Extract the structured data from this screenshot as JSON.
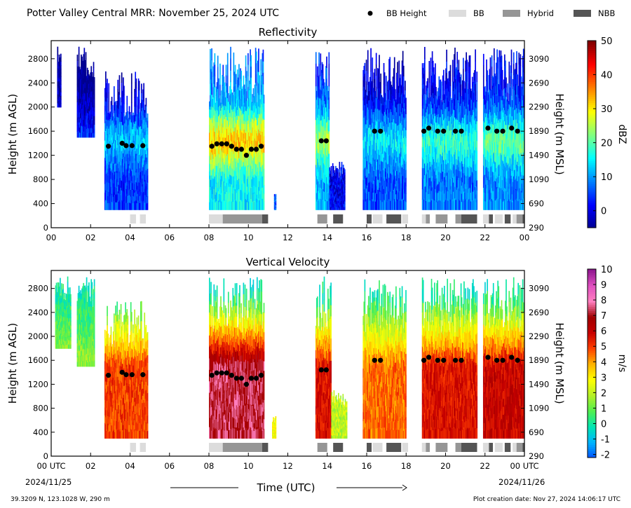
{
  "header": {
    "title": "Potter Valley Central MRR:  November 25, 2024 UTC",
    "legend": [
      {
        "label": "BB Height",
        "kind": "dot",
        "color": "#000000"
      },
      {
        "label": "BB",
        "kind": "rect",
        "color": "#dcdcdc"
      },
      {
        "label": "Hybrid",
        "kind": "rect",
        "color": "#969696"
      },
      {
        "label": "NBB",
        "kind": "rect",
        "color": "#555555"
      }
    ]
  },
  "footer": {
    "location": "39.3209 N, 123.1028 W, 290 m",
    "creation": "Plot creation date: Nov 27, 2024 14:06:17 UTC",
    "xlabel": "Time (UTC)",
    "date_start": "2024/11/25",
    "date_end": "2024/11/26"
  },
  "chart_data": [
    {
      "type": "heatmap",
      "title": "Reflectivity",
      "ylabel": "Height (m AGL)",
      "ylabel_right": "Height (m MSL)",
      "xlim": [
        0,
        24
      ],
      "ylim": [
        0,
        3100
      ],
      "x_ticks": [
        "00",
        "02",
        "04",
        "06",
        "08",
        "10",
        "12",
        "14",
        "16",
        "18",
        "20",
        "22",
        "00"
      ],
      "y_ticks": [
        0,
        400,
        800,
        1200,
        1600,
        2000,
        2400,
        2800
      ],
      "y_ticks_right": [
        290,
        690,
        1090,
        1490,
        1890,
        2290,
        2690,
        3090
      ],
      "colorbar": {
        "label": "dBZ",
        "min": -5,
        "max": 50,
        "ticks": [
          50,
          40,
          30,
          20,
          10,
          0
        ]
      },
      "colormap": [
        "#00008f",
        "#0000ff",
        "#0080ff",
        "#00ffff",
        "#80ff80",
        "#ffff00",
        "#ff8000",
        "#ff0000",
        "#800000"
      ],
      "precip_segments": [
        {
          "start": 0.3,
          "end": 0.5,
          "top": 3000,
          "bottom": 2000,
          "intensity": 0.3
        },
        {
          "start": 1.3,
          "end": 2.2,
          "top": 3000,
          "bottom": 1500,
          "intensity": 0.25
        },
        {
          "start": 2.7,
          "end": 4.9,
          "top": 2600,
          "bottom": 300,
          "intensity": 0.38
        },
        {
          "start": 8.0,
          "end": 10.8,
          "top": 3000,
          "bottom": 300,
          "intensity": 0.72
        },
        {
          "start": 11.3,
          "end": 11.4,
          "top": 600,
          "bottom": 300,
          "intensity": 0.4
        },
        {
          "start": 13.4,
          "end": 14.1,
          "top": 3000,
          "bottom": 300,
          "intensity": 0.6
        },
        {
          "start": 14.1,
          "end": 14.9,
          "top": 1100,
          "bottom": 300,
          "intensity": 0.25
        },
        {
          "start": 15.8,
          "end": 18.0,
          "top": 3000,
          "bottom": 300,
          "intensity": 0.42
        },
        {
          "start": 18.8,
          "end": 21.6,
          "top": 3000,
          "bottom": 300,
          "intensity": 0.48
        },
        {
          "start": 21.9,
          "end": 24.0,
          "top": 3000,
          "bottom": 300,
          "intensity": 0.52
        }
      ],
      "bb_points": [
        {
          "t": 2.9,
          "h": 1350
        },
        {
          "t": 3.6,
          "h": 1400
        },
        {
          "t": 3.8,
          "h": 1360
        },
        {
          "t": 4.1,
          "h": 1360
        },
        {
          "t": 4.65,
          "h": 1360
        },
        {
          "t": 8.15,
          "h": 1350
        },
        {
          "t": 8.4,
          "h": 1390
        },
        {
          "t": 8.65,
          "h": 1390
        },
        {
          "t": 8.9,
          "h": 1390
        },
        {
          "t": 9.15,
          "h": 1350
        },
        {
          "t": 9.4,
          "h": 1300
        },
        {
          "t": 9.65,
          "h": 1300
        },
        {
          "t": 9.9,
          "h": 1200
        },
        {
          "t": 10.15,
          "h": 1300
        },
        {
          "t": 10.4,
          "h": 1300
        },
        {
          "t": 10.65,
          "h": 1350
        },
        {
          "t": 13.7,
          "h": 1440
        },
        {
          "t": 13.95,
          "h": 1440
        },
        {
          "t": 16.4,
          "h": 1600
        },
        {
          "t": 16.7,
          "h": 1600
        },
        {
          "t": 18.9,
          "h": 1600
        },
        {
          "t": 19.15,
          "h": 1650
        },
        {
          "t": 19.6,
          "h": 1600
        },
        {
          "t": 19.9,
          "h": 1600
        },
        {
          "t": 20.5,
          "h": 1600
        },
        {
          "t": 20.8,
          "h": 1600
        },
        {
          "t": 22.15,
          "h": 1650
        },
        {
          "t": 22.6,
          "h": 1600
        },
        {
          "t": 22.9,
          "h": 1600
        },
        {
          "t": 23.35,
          "h": 1650
        },
        {
          "t": 23.65,
          "h": 1600
        }
      ],
      "bb_type_bar": [
        {
          "start": 4.0,
          "end": 4.3,
          "type": "BB"
        },
        {
          "start": 4.5,
          "end": 4.8,
          "type": "BB"
        },
        {
          "start": 8.0,
          "end": 8.7,
          "type": "BB"
        },
        {
          "start": 8.7,
          "end": 10.7,
          "type": "Hybrid"
        },
        {
          "start": 10.7,
          "end": 11.0,
          "type": "NBB"
        },
        {
          "start": 13.5,
          "end": 14.0,
          "type": "Hybrid"
        },
        {
          "start": 14.3,
          "end": 14.8,
          "type": "NBB"
        },
        {
          "start": 16.0,
          "end": 16.25,
          "type": "NBB"
        },
        {
          "start": 16.3,
          "end": 16.8,
          "type": "BB"
        },
        {
          "start": 17.0,
          "end": 17.75,
          "type": "NBB"
        },
        {
          "start": 17.8,
          "end": 18.1,
          "type": "BB"
        },
        {
          "start": 18.8,
          "end": 19.0,
          "type": "BB"
        },
        {
          "start": 19.0,
          "end": 19.2,
          "type": "Hybrid"
        },
        {
          "start": 19.5,
          "end": 20.1,
          "type": "Hybrid"
        },
        {
          "start": 20.5,
          "end": 20.8,
          "type": "Hybrid"
        },
        {
          "start": 20.8,
          "end": 21.6,
          "type": "NBB"
        },
        {
          "start": 21.9,
          "end": 22.2,
          "type": "BB"
        },
        {
          "start": 22.2,
          "end": 22.4,
          "type": "NBB"
        },
        {
          "start": 22.5,
          "end": 22.9,
          "type": "BB"
        },
        {
          "start": 23.0,
          "end": 23.3,
          "type": "NBB"
        },
        {
          "start": 23.4,
          "end": 23.6,
          "type": "BB"
        },
        {
          "start": 23.6,
          "end": 23.9,
          "type": "Hybrid"
        },
        {
          "start": 23.9,
          "end": 24.0,
          "type": "NBB"
        }
      ]
    },
    {
      "type": "heatmap",
      "title": "Vertical Velocity",
      "ylabel": "Height (m AGL)",
      "ylabel_right": "Height (m MSL)",
      "xlim": [
        0,
        24
      ],
      "ylim": [
        0,
        3100
      ],
      "x_ticks": [
        "00 UTC",
        "02",
        "04",
        "06",
        "08",
        "10",
        "12",
        "14",
        "16",
        "18",
        "20",
        "22",
        "00 UTC"
      ],
      "y_ticks": [
        0,
        400,
        800,
        1200,
        1600,
        2000,
        2400,
        2800
      ],
      "y_ticks_right": [
        290,
        690,
        1090,
        1490,
        1890,
        2290,
        2690,
        3090
      ],
      "colorbar": {
        "label": "m/s",
        "min": -2.2,
        "max": 10,
        "ticks": [
          10,
          9,
          8,
          7,
          6,
          5,
          4,
          3,
          2,
          1,
          0,
          -1,
          -2
        ]
      },
      "colormap": [
        "#0050ff",
        "#00b4ff",
        "#00e6b4",
        "#50f050",
        "#b4f028",
        "#ffff00",
        "#ffb400",
        "#ff4000",
        "#c80000",
        "#a00000",
        "#ff80c0",
        "#e050c0",
        "#901890"
      ],
      "precip_segments": [
        {
          "start": 0.2,
          "end": 1.0,
          "top": 3000,
          "bottom": 1800,
          "intensity": 0.2
        },
        {
          "start": 1.3,
          "end": 2.2,
          "top": 3000,
          "bottom": 1500,
          "intensity": 0.18
        },
        {
          "start": 2.7,
          "end": 4.9,
          "top": 2600,
          "bottom": 300,
          "intensity": 0.55
        },
        {
          "start": 8.0,
          "end": 10.8,
          "top": 3000,
          "bottom": 300,
          "intensity": 0.8
        },
        {
          "start": 11.2,
          "end": 11.4,
          "top": 700,
          "bottom": 300,
          "intensity": 0.3
        },
        {
          "start": 13.4,
          "end": 14.2,
          "top": 3000,
          "bottom": 300,
          "intensity": 0.62
        },
        {
          "start": 14.2,
          "end": 15.0,
          "top": 1100,
          "bottom": 300,
          "intensity": 0.22
        },
        {
          "start": 15.8,
          "end": 18.0,
          "top": 3000,
          "bottom": 300,
          "intensity": 0.5
        },
        {
          "start": 18.8,
          "end": 21.6,
          "top": 3000,
          "bottom": 300,
          "intensity": 0.62
        },
        {
          "start": 21.9,
          "end": 24.0,
          "top": 3000,
          "bottom": 300,
          "intensity": 0.66
        }
      ],
      "bb_points": [
        {
          "t": 2.9,
          "h": 1350
        },
        {
          "t": 3.6,
          "h": 1400
        },
        {
          "t": 3.8,
          "h": 1360
        },
        {
          "t": 4.1,
          "h": 1360
        },
        {
          "t": 4.65,
          "h": 1360
        },
        {
          "t": 8.15,
          "h": 1350
        },
        {
          "t": 8.4,
          "h": 1390
        },
        {
          "t": 8.65,
          "h": 1390
        },
        {
          "t": 8.9,
          "h": 1390
        },
        {
          "t": 9.15,
          "h": 1350
        },
        {
          "t": 9.4,
          "h": 1300
        },
        {
          "t": 9.65,
          "h": 1300
        },
        {
          "t": 9.9,
          "h": 1200
        },
        {
          "t": 10.15,
          "h": 1300
        },
        {
          "t": 10.4,
          "h": 1300
        },
        {
          "t": 10.65,
          "h": 1350
        },
        {
          "t": 13.7,
          "h": 1440
        },
        {
          "t": 13.95,
          "h": 1440
        },
        {
          "t": 16.4,
          "h": 1600
        },
        {
          "t": 16.7,
          "h": 1600
        },
        {
          "t": 18.9,
          "h": 1600
        },
        {
          "t": 19.15,
          "h": 1650
        },
        {
          "t": 19.6,
          "h": 1600
        },
        {
          "t": 19.9,
          "h": 1600
        },
        {
          "t": 20.5,
          "h": 1600
        },
        {
          "t": 20.8,
          "h": 1600
        },
        {
          "t": 22.15,
          "h": 1650
        },
        {
          "t": 22.6,
          "h": 1600
        },
        {
          "t": 22.9,
          "h": 1600
        },
        {
          "t": 23.35,
          "h": 1650
        },
        {
          "t": 23.65,
          "h": 1600
        }
      ],
      "bb_type_bar": [
        {
          "start": 4.0,
          "end": 4.3,
          "type": "BB"
        },
        {
          "start": 4.5,
          "end": 4.8,
          "type": "BB"
        },
        {
          "start": 8.0,
          "end": 8.7,
          "type": "BB"
        },
        {
          "start": 8.7,
          "end": 10.7,
          "type": "Hybrid"
        },
        {
          "start": 10.7,
          "end": 11.0,
          "type": "NBB"
        },
        {
          "start": 13.5,
          "end": 14.0,
          "type": "Hybrid"
        },
        {
          "start": 14.3,
          "end": 14.8,
          "type": "NBB"
        },
        {
          "start": 16.0,
          "end": 16.25,
          "type": "NBB"
        },
        {
          "start": 16.3,
          "end": 16.8,
          "type": "BB"
        },
        {
          "start": 17.0,
          "end": 17.75,
          "type": "NBB"
        },
        {
          "start": 17.8,
          "end": 18.1,
          "type": "BB"
        },
        {
          "start": 18.8,
          "end": 19.0,
          "type": "BB"
        },
        {
          "start": 19.0,
          "end": 19.2,
          "type": "Hybrid"
        },
        {
          "start": 19.5,
          "end": 20.1,
          "type": "Hybrid"
        },
        {
          "start": 20.5,
          "end": 20.8,
          "type": "Hybrid"
        },
        {
          "start": 20.8,
          "end": 21.6,
          "type": "NBB"
        },
        {
          "start": 21.9,
          "end": 22.2,
          "type": "BB"
        },
        {
          "start": 22.2,
          "end": 22.4,
          "type": "NBB"
        },
        {
          "start": 22.5,
          "end": 22.9,
          "type": "BB"
        },
        {
          "start": 23.0,
          "end": 23.3,
          "type": "NBB"
        },
        {
          "start": 23.4,
          "end": 23.6,
          "type": "BB"
        },
        {
          "start": 23.6,
          "end": 23.9,
          "type": "Hybrid"
        },
        {
          "start": 23.9,
          "end": 24.0,
          "type": "NBB"
        }
      ]
    }
  ]
}
